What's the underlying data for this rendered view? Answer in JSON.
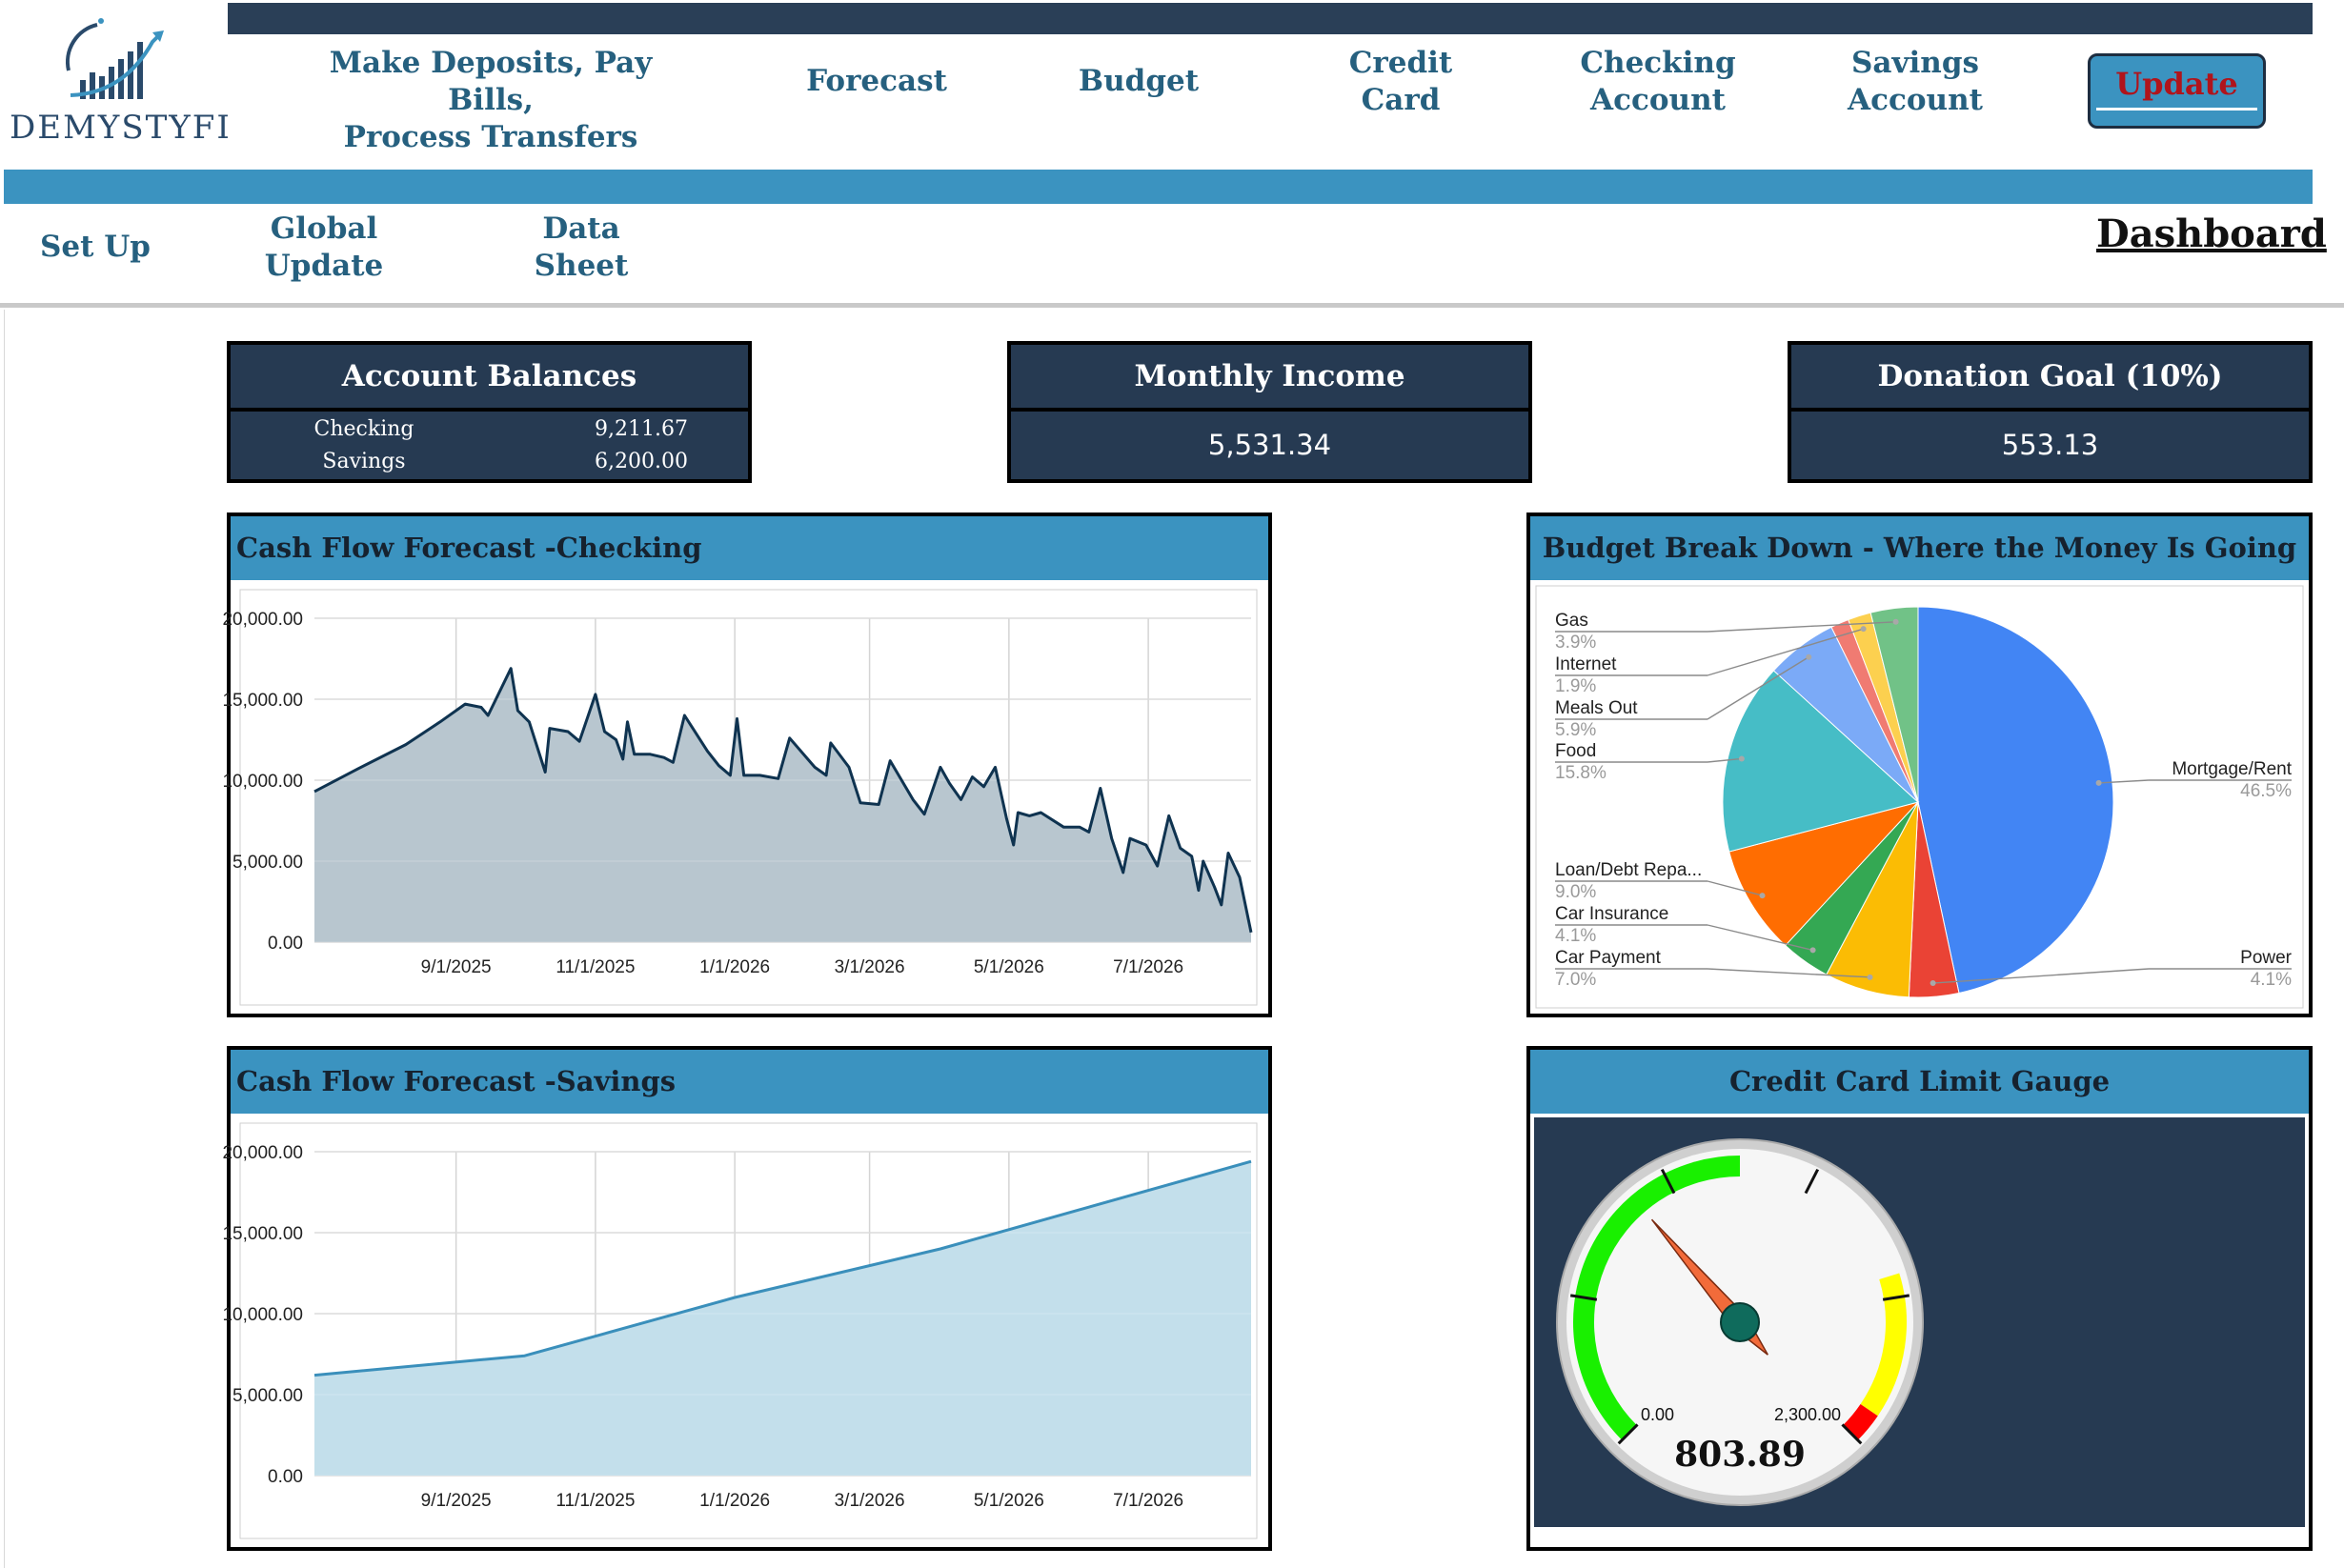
{
  "logo": {
    "text": "DEMYSTYFI"
  },
  "nav_top": {
    "deposits": [
      "Make Deposits, Pay Bills,",
      "Process Transfers"
    ],
    "forecast": "Forecast",
    "budget": "Budget",
    "credit": [
      "Credit",
      "Card"
    ],
    "checking": [
      "Checking",
      "Account"
    ],
    "savings": [
      "Savings",
      "Account"
    ],
    "update": "Update"
  },
  "nav_bottom": {
    "setup": "Set Up",
    "global": [
      "Global",
      "Update"
    ],
    "data": [
      "Data",
      "Sheet"
    ],
    "dashboard": "Dashboard"
  },
  "colors": {
    "dark_navy": "#263a52",
    "accent_blue": "#3b93c0",
    "nav_text": "#26607f",
    "update_text": "#b0141b"
  },
  "account_balances": {
    "title": "Account Balances",
    "rows": [
      {
        "label": "Checking",
        "value": "9,211.67"
      },
      {
        "label": "Savings",
        "value": "6,200.00"
      }
    ]
  },
  "monthly_income": {
    "title": "Monthly Income",
    "value": "5,531.34"
  },
  "donation_goal": {
    "title": "Donation Goal (10%)",
    "value": "553.13"
  },
  "chart_data": [
    {
      "type": "area",
      "title": "Cash Flow Forecast -Checking",
      "x_ticks": [
        "9/1/2025",
        "11/1/2025",
        "1/1/2026",
        "3/1/2026",
        "5/1/2026",
        "7/1/2026"
      ],
      "y_ticks": [
        "20,000.00",
        "15,000.00",
        "10,000.00",
        "5,000.00",
        "0.00"
      ],
      "ylim": [
        0,
        20000
      ],
      "xlim": [
        "7/1/2025",
        "8/15/2026"
      ],
      "grid": true,
      "color": "#0f3350",
      "fill": "#b8c6cf",
      "points": [
        [
          "7/1/2025",
          9300
        ],
        [
          "7/20/2025",
          10700
        ],
        [
          "8/10/2025",
          12200
        ],
        [
          "8/25/2025",
          13600
        ],
        [
          "9/5/2025",
          14700
        ],
        [
          "9/12/2025",
          14500
        ],
        [
          "9/15/2025",
          14000
        ],
        [
          "9/25/2025",
          16900
        ],
        [
          "9/28/2025",
          14300
        ],
        [
          "10/3/2025",
          13600
        ],
        [
          "10/10/2025",
          10500
        ],
        [
          "10/12/2025",
          13200
        ],
        [
          "10/20/2025",
          13000
        ],
        [
          "10/25/2025",
          12400
        ],
        [
          "11/1/2025",
          15300
        ],
        [
          "11/5/2025",
          13000
        ],
        [
          "11/10/2025",
          12500
        ],
        [
          "11/13/2025",
          11300
        ],
        [
          "11/15/2025",
          13600
        ],
        [
          "11/18/2025",
          11600
        ],
        [
          "11/25/2025",
          11600
        ],
        [
          "12/1/2025",
          11400
        ],
        [
          "12/5/2025",
          11100
        ],
        [
          "12/10/2025",
          14000
        ],
        [
          "12/20/2025",
          11800
        ],
        [
          "12/25/2025",
          10900
        ],
        [
          "12/30/2025",
          10300
        ],
        [
          "1/2/2026",
          13800
        ],
        [
          "1/5/2026",
          10300
        ],
        [
          "1/12/2026",
          10300
        ],
        [
          "1/20/2026",
          10100
        ],
        [
          "1/25/2026",
          12600
        ],
        [
          "2/5/2026",
          10800
        ],
        [
          "2/10/2026",
          10300
        ],
        [
          "2/12/2026",
          12300
        ],
        [
          "2/20/2026",
          10800
        ],
        [
          "2/25/2026",
          8600
        ],
        [
          "3/5/2026",
          8500
        ],
        [
          "3/10/2026",
          11200
        ],
        [
          "3/15/2026",
          10000
        ],
        [
          "3/20/2026",
          8800
        ],
        [
          "3/25/2026",
          7900
        ],
        [
          "4/1/2026",
          10800
        ],
        [
          "4/5/2026",
          9800
        ],
        [
          "4/10/2026",
          8800
        ],
        [
          "4/15/2026",
          10200
        ],
        [
          "4/20/2026",
          9600
        ],
        [
          "4/25/2026",
          10800
        ],
        [
          "4/30/2026",
          7600
        ],
        [
          "5/3/2026",
          6000
        ],
        [
          "5/5/2026",
          8000
        ],
        [
          "5/10/2026",
          7800
        ],
        [
          "5/15/2026",
          8000
        ],
        [
          "5/25/2026",
          7100
        ],
        [
          "6/1/2026",
          7100
        ],
        [
          "6/5/2026",
          6800
        ],
        [
          "6/10/2026",
          9500
        ],
        [
          "6/15/2026",
          6400
        ],
        [
          "6/20/2026",
          4300
        ],
        [
          "6/23/2026",
          6400
        ],
        [
          "6/30/2026",
          6000
        ],
        [
          "7/5/2026",
          4700
        ],
        [
          "7/10/2026",
          7800
        ],
        [
          "7/15/2026",
          5800
        ],
        [
          "7/20/2026",
          5300
        ],
        [
          "7/23/2026",
          3200
        ],
        [
          "7/25/2026",
          5000
        ],
        [
          "7/30/2026",
          3400
        ],
        [
          "8/2/2026",
          2300
        ],
        [
          "8/5/2026",
          5500
        ],
        [
          "8/10/2026",
          4000
        ],
        [
          "8/15/2026",
          600
        ]
      ]
    },
    {
      "type": "area",
      "title": "Cash Flow Forecast -Savings",
      "x_ticks": [
        "9/1/2025",
        "11/1/2025",
        "1/1/2026",
        "3/1/2026",
        "5/1/2026",
        "7/1/2026"
      ],
      "y_ticks": [
        "20,000.00",
        "15,000.00",
        "10,000.00",
        "5,000.00",
        "0.00"
      ],
      "ylim": [
        0,
        20000
      ],
      "xlim": [
        "7/1/2025",
        "8/15/2026"
      ],
      "grid": true,
      "color": "#3a8fbb",
      "fill": "#c3dfeb",
      "points": [
        [
          "7/1/2025",
          6200
        ],
        [
          "10/1/2025",
          7400
        ],
        [
          "1/1/2026",
          11000
        ],
        [
          "4/1/2026",
          14000
        ],
        [
          "8/15/2026",
          19400
        ]
      ]
    },
    {
      "type": "pie",
      "title": "Budget Break Down - Where the Money Is Going",
      "slices": [
        {
          "label": "Mortgage/Rent",
          "value": 46.5,
          "pct": "46.5%",
          "color": "#4285f4"
        },
        {
          "label": "Power",
          "value": 4.1,
          "pct": "4.1%",
          "color": "#ea4335"
        },
        {
          "label": "Car Payment",
          "value": 7.0,
          "pct": "7.0%",
          "color": "#fbbc04"
        },
        {
          "label": "Car Insurance",
          "value": 4.1,
          "pct": "4.1%",
          "color": "#34a853"
        },
        {
          "label": "Loan/Debt Repa...",
          "value": 9.0,
          "pct": "9.0%",
          "color": "#ff6d01"
        },
        {
          "label": "Food",
          "value": 15.8,
          "pct": "15.8%",
          "color": "#46bdc6"
        },
        {
          "label": "Meals Out",
          "value": 5.9,
          "pct": "5.9%",
          "color": "#7baaf7"
        },
        {
          "label": "",
          "value": 1.5,
          "pct": "",
          "color": "#f07b72"
        },
        {
          "label": "Internet",
          "value": 1.9,
          "pct": "1.9%",
          "color": "#fcd04f"
        },
        {
          "label": "Gas",
          "value": 3.9,
          "pct": "3.9%",
          "color": "#71c287"
        }
      ]
    }
  ],
  "gauge": {
    "title": "Credit Card Limit Gauge",
    "value": "803.89",
    "min_label": "0.00",
    "max_label": "2,300.00",
    "value_num": 803.89,
    "max_num": 2300
  }
}
